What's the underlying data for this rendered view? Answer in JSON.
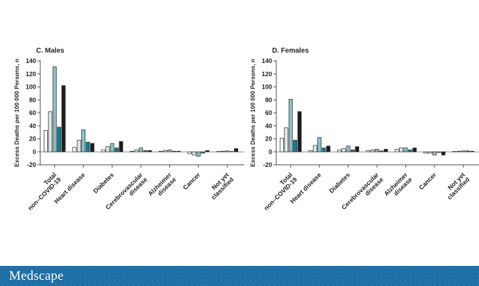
{
  "page": {
    "background_color": "#ffffff"
  },
  "footer": {
    "brand": "Medscape",
    "bar_color": "#1e6fa5",
    "text_color": "#ffffff"
  },
  "axis_style": {
    "axis_color": "#4a4a4a",
    "tick_label_color": "#222222",
    "zero_line_color": "#6a6a6a"
  },
  "chart_data": [
    {
      "type": "bar",
      "title": "C. Males",
      "ylabel": "Excess Deaths per 100 000 Persons, n",
      "ylabel_prefix": "Excess Deaths per 100 000 Persons, ",
      "ylabel_italic_suffix": "n",
      "ylim": [
        -20,
        140
      ],
      "yticks": [
        140,
        120,
        100,
        80,
        60,
        40,
        20,
        0,
        -20
      ],
      "grid": false,
      "legend": "none",
      "categories": [
        [
          "Total",
          "non–COVID-19"
        ],
        [
          "Heart disease"
        ],
        [
          "Diabetes"
        ],
        [
          "Cerebrovascular",
          "disease"
        ],
        [
          "Alzheimer",
          "disease"
        ],
        [
          "Cancer"
        ],
        [
          "Not yet",
          "classified"
        ]
      ],
      "series": [
        {
          "name": "series-white",
          "color": "#ffffff",
          "values": [
            33,
            7,
            3,
            1,
            1,
            -3,
            0.5
          ]
        },
        {
          "name": "series-pale-blue",
          "color": "#dfe9ec",
          "values": [
            62,
            18,
            8,
            3,
            2,
            -5,
            1
          ]
        },
        {
          "name": "series-light-teal",
          "color": "#8dbfca",
          "values": [
            131,
            34,
            13,
            6,
            3,
            -7,
            1.5
          ]
        },
        {
          "name": "series-dark-teal",
          "color": "#0f7e90",
          "values": [
            38,
            15,
            6,
            2,
            1,
            -2,
            0.5
          ]
        },
        {
          "name": "series-black",
          "color": "#1b1b1b",
          "values": [
            102,
            13,
            16,
            2,
            1,
            2,
            5
          ]
        }
      ]
    },
    {
      "type": "bar",
      "title": "D. Females",
      "ylabel": "Excess Deaths per 100 000 Persons, n",
      "ylabel_prefix": "Excess Deaths per 100 000 Persons, ",
      "ylabel_italic_suffix": "n",
      "ylim": [
        -20,
        140
      ],
      "yticks": [
        140,
        120,
        100,
        80,
        60,
        40,
        20,
        0,
        -20
      ],
      "grid": false,
      "legend": "none",
      "categories": [
        [
          "Total",
          "non–COVID-19"
        ],
        [
          "Heart disease"
        ],
        [
          "Diabetes"
        ],
        [
          "Cerebrovascular",
          "disease"
        ],
        [
          "Alzheimer",
          "disease"
        ],
        [
          "Cancer"
        ],
        [
          "Not yet",
          "classified"
        ]
      ],
      "series": [
        {
          "name": "series-white",
          "color": "#ffffff",
          "values": [
            21,
            2,
            3,
            2,
            4,
            -2,
            0.5
          ]
        },
        {
          "name": "series-pale-blue",
          "color": "#dfe9ec",
          "values": [
            37,
            10,
            5,
            3,
            6,
            -2,
            1
          ]
        },
        {
          "name": "series-light-teal",
          "color": "#8dbfca",
          "values": [
            81,
            22,
            9,
            4,
            6,
            -5,
            1.5
          ]
        },
        {
          "name": "series-dark-teal",
          "color": "#0f7e90",
          "values": [
            18,
            6,
            3,
            1.5,
            3,
            -1,
            1.5
          ]
        },
        {
          "name": "series-black",
          "color": "#1b1b1b",
          "values": [
            62,
            9,
            8,
            4,
            6,
            -5,
            1
          ]
        }
      ]
    }
  ]
}
